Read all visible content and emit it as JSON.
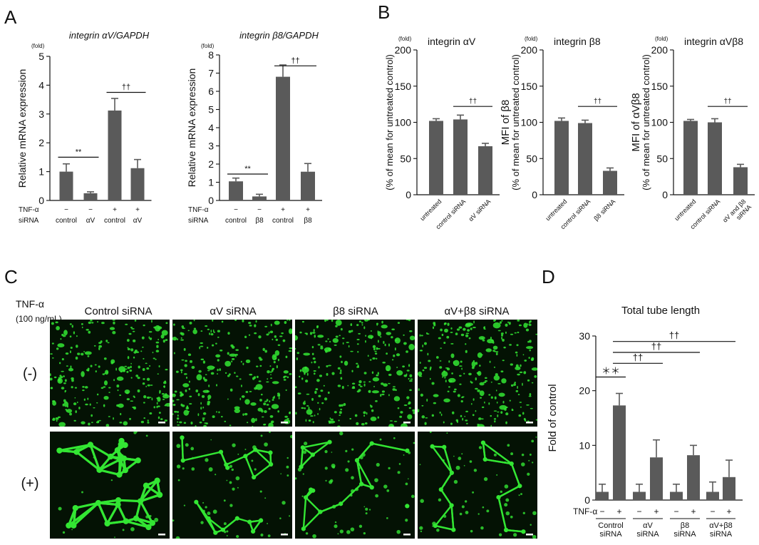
{
  "panels": {
    "A": "A",
    "B": "B",
    "C": "C",
    "D": "D"
  },
  "colors": {
    "bar": "#5a5a5a",
    "fluor_green": "#33e633",
    "fluor_bg": "#041204",
    "scalebar": "#ffffff"
  },
  "chart_data": [
    {
      "id": "A1",
      "type": "bar",
      "title": "integrin αV/GAPDH",
      "ylabel": "Relative mRNA expression",
      "unit": "(fold)",
      "ylim": [
        0,
        5
      ],
      "yticks": [
        0,
        1,
        2,
        3,
        4,
        5
      ],
      "values": [
        1.0,
        0.25,
        3.12,
        1.12
      ],
      "errors": [
        0.27,
        0.05,
        0.42,
        0.3
      ],
      "row_labels": [
        "TNF-α",
        "siRNA"
      ],
      "rows": [
        [
          "−",
          "−",
          "+",
          "+"
        ],
        [
          "control",
          "αV",
          "control",
          "αV"
        ]
      ],
      "sig": [
        {
          "from": 0,
          "to": 1,
          "y": 1.5,
          "label": "**"
        },
        {
          "from": 2,
          "to": 3,
          "y": 3.75,
          "label": "††"
        }
      ]
    },
    {
      "id": "A2",
      "type": "bar",
      "title": "integrin β8/GAPDH",
      "ylabel": "Relative mRNA expression",
      "unit": "(fold)",
      "ylim": [
        0,
        8
      ],
      "yticks": [
        0,
        1,
        2,
        3,
        4,
        5,
        6,
        7,
        8
      ],
      "values": [
        1.05,
        0.22,
        6.8,
        1.58
      ],
      "errors": [
        0.18,
        0.12,
        0.65,
        0.45
      ],
      "row_labels": [
        "TNF-α",
        "siRNA"
      ],
      "rows": [
        [
          "−",
          "−",
          "+",
          "+"
        ],
        [
          "control",
          "β8",
          "control",
          "β8"
        ]
      ],
      "sig": [
        {
          "from": 0,
          "to": 1,
          "y": 1.45,
          "label": "**"
        },
        {
          "from": 2,
          "to": 3,
          "y": 7.4,
          "label": "††"
        }
      ]
    },
    {
      "id": "B1",
      "type": "bar",
      "title": "integrin αV",
      "ylabel_lines": [
        "(% of mean for untreated control)"
      ],
      "unit": "(fold)",
      "ylim": [
        0,
        200
      ],
      "yticks": [
        0,
        50,
        100,
        150,
        200
      ],
      "categories": [
        "untreated",
        "control siRNA",
        "αV siRNA"
      ],
      "values": [
        102,
        104,
        67
      ],
      "errors": [
        3,
        6,
        4
      ],
      "sig": [
        {
          "from": 1,
          "to": 2,
          "y": 122,
          "label": "††"
        }
      ]
    },
    {
      "id": "B2",
      "type": "bar",
      "title": "integrin β8",
      "ylabel_lines": [
        "MFI of β8",
        "(% of mean for untreated control)"
      ],
      "unit": "(fold)",
      "ylim": [
        0,
        200
      ],
      "yticks": [
        0,
        50,
        100,
        150,
        200
      ],
      "categories": [
        "untreated",
        "control siRNA",
        "β8 siRNA"
      ],
      "values": [
        102,
        99,
        33
      ],
      "errors": [
        4,
        4,
        4
      ],
      "sig": [
        {
          "from": 1,
          "to": 2,
          "y": 122,
          "label": "††"
        }
      ]
    },
    {
      "id": "B3",
      "type": "bar",
      "title": "integrin αVβ8",
      "ylabel_lines": [
        "MFI of αVβ8",
        "(% of mean for untreated control)"
      ],
      "unit": "(fold)",
      "ylim": [
        0,
        200
      ],
      "yticks": [
        0,
        50,
        100,
        150,
        200
      ],
      "categories": [
        "untreated",
        "control siRNA",
        "αV and β8 siRNA"
      ],
      "values": [
        102,
        100,
        38
      ],
      "errors": [
        2,
        5,
        4
      ],
      "sig": [
        {
          "from": 1,
          "to": 2,
          "y": 122,
          "label": "††"
        }
      ]
    },
    {
      "id": "D",
      "type": "bar",
      "title": "Total tube length",
      "ylabel": "Fold  of control",
      "ylim": [
        0,
        30
      ],
      "yticks": [
        0,
        10,
        20,
        30
      ],
      "values": [
        1.5,
        17.3,
        1.5,
        7.8,
        1.5,
        8.2,
        1.5,
        4.2
      ],
      "errors": [
        1.4,
        2.2,
        1.4,
        3.2,
        1.4,
        1.8,
        1.8,
        3.1
      ],
      "tnf_label": "TNF-α",
      "tnf": [
        "−",
        "+",
        "−",
        "+",
        "−",
        "+",
        "−",
        "+"
      ],
      "groups": [
        [
          "Control",
          "siRNA"
        ],
        [
          "αV",
          "siRNA"
        ],
        [
          "β8",
          "siRNA"
        ],
        [
          "αV+β8",
          "siRNA"
        ]
      ],
      "sig": [
        {
          "from": 0,
          "to": 1,
          "y": 22.5,
          "label": "＊＊"
        },
        {
          "from": 1,
          "to": 3,
          "y": 25.0,
          "label": "††"
        },
        {
          "from": 1,
          "to": 5,
          "y": 27.0,
          "label": "††"
        },
        {
          "from": 1,
          "to": 7,
          "y": 29.0,
          "label": "††"
        }
      ]
    }
  ],
  "panel_c": {
    "tnf_label": "TNF-α",
    "dose": "(100 ng/mL)",
    "columns": [
      "Control siRNA",
      "αV siRNA",
      "β8 siRNA",
      "αV+β8 siRNA"
    ],
    "rows": [
      "(-)",
      "(+)"
    ]
  }
}
